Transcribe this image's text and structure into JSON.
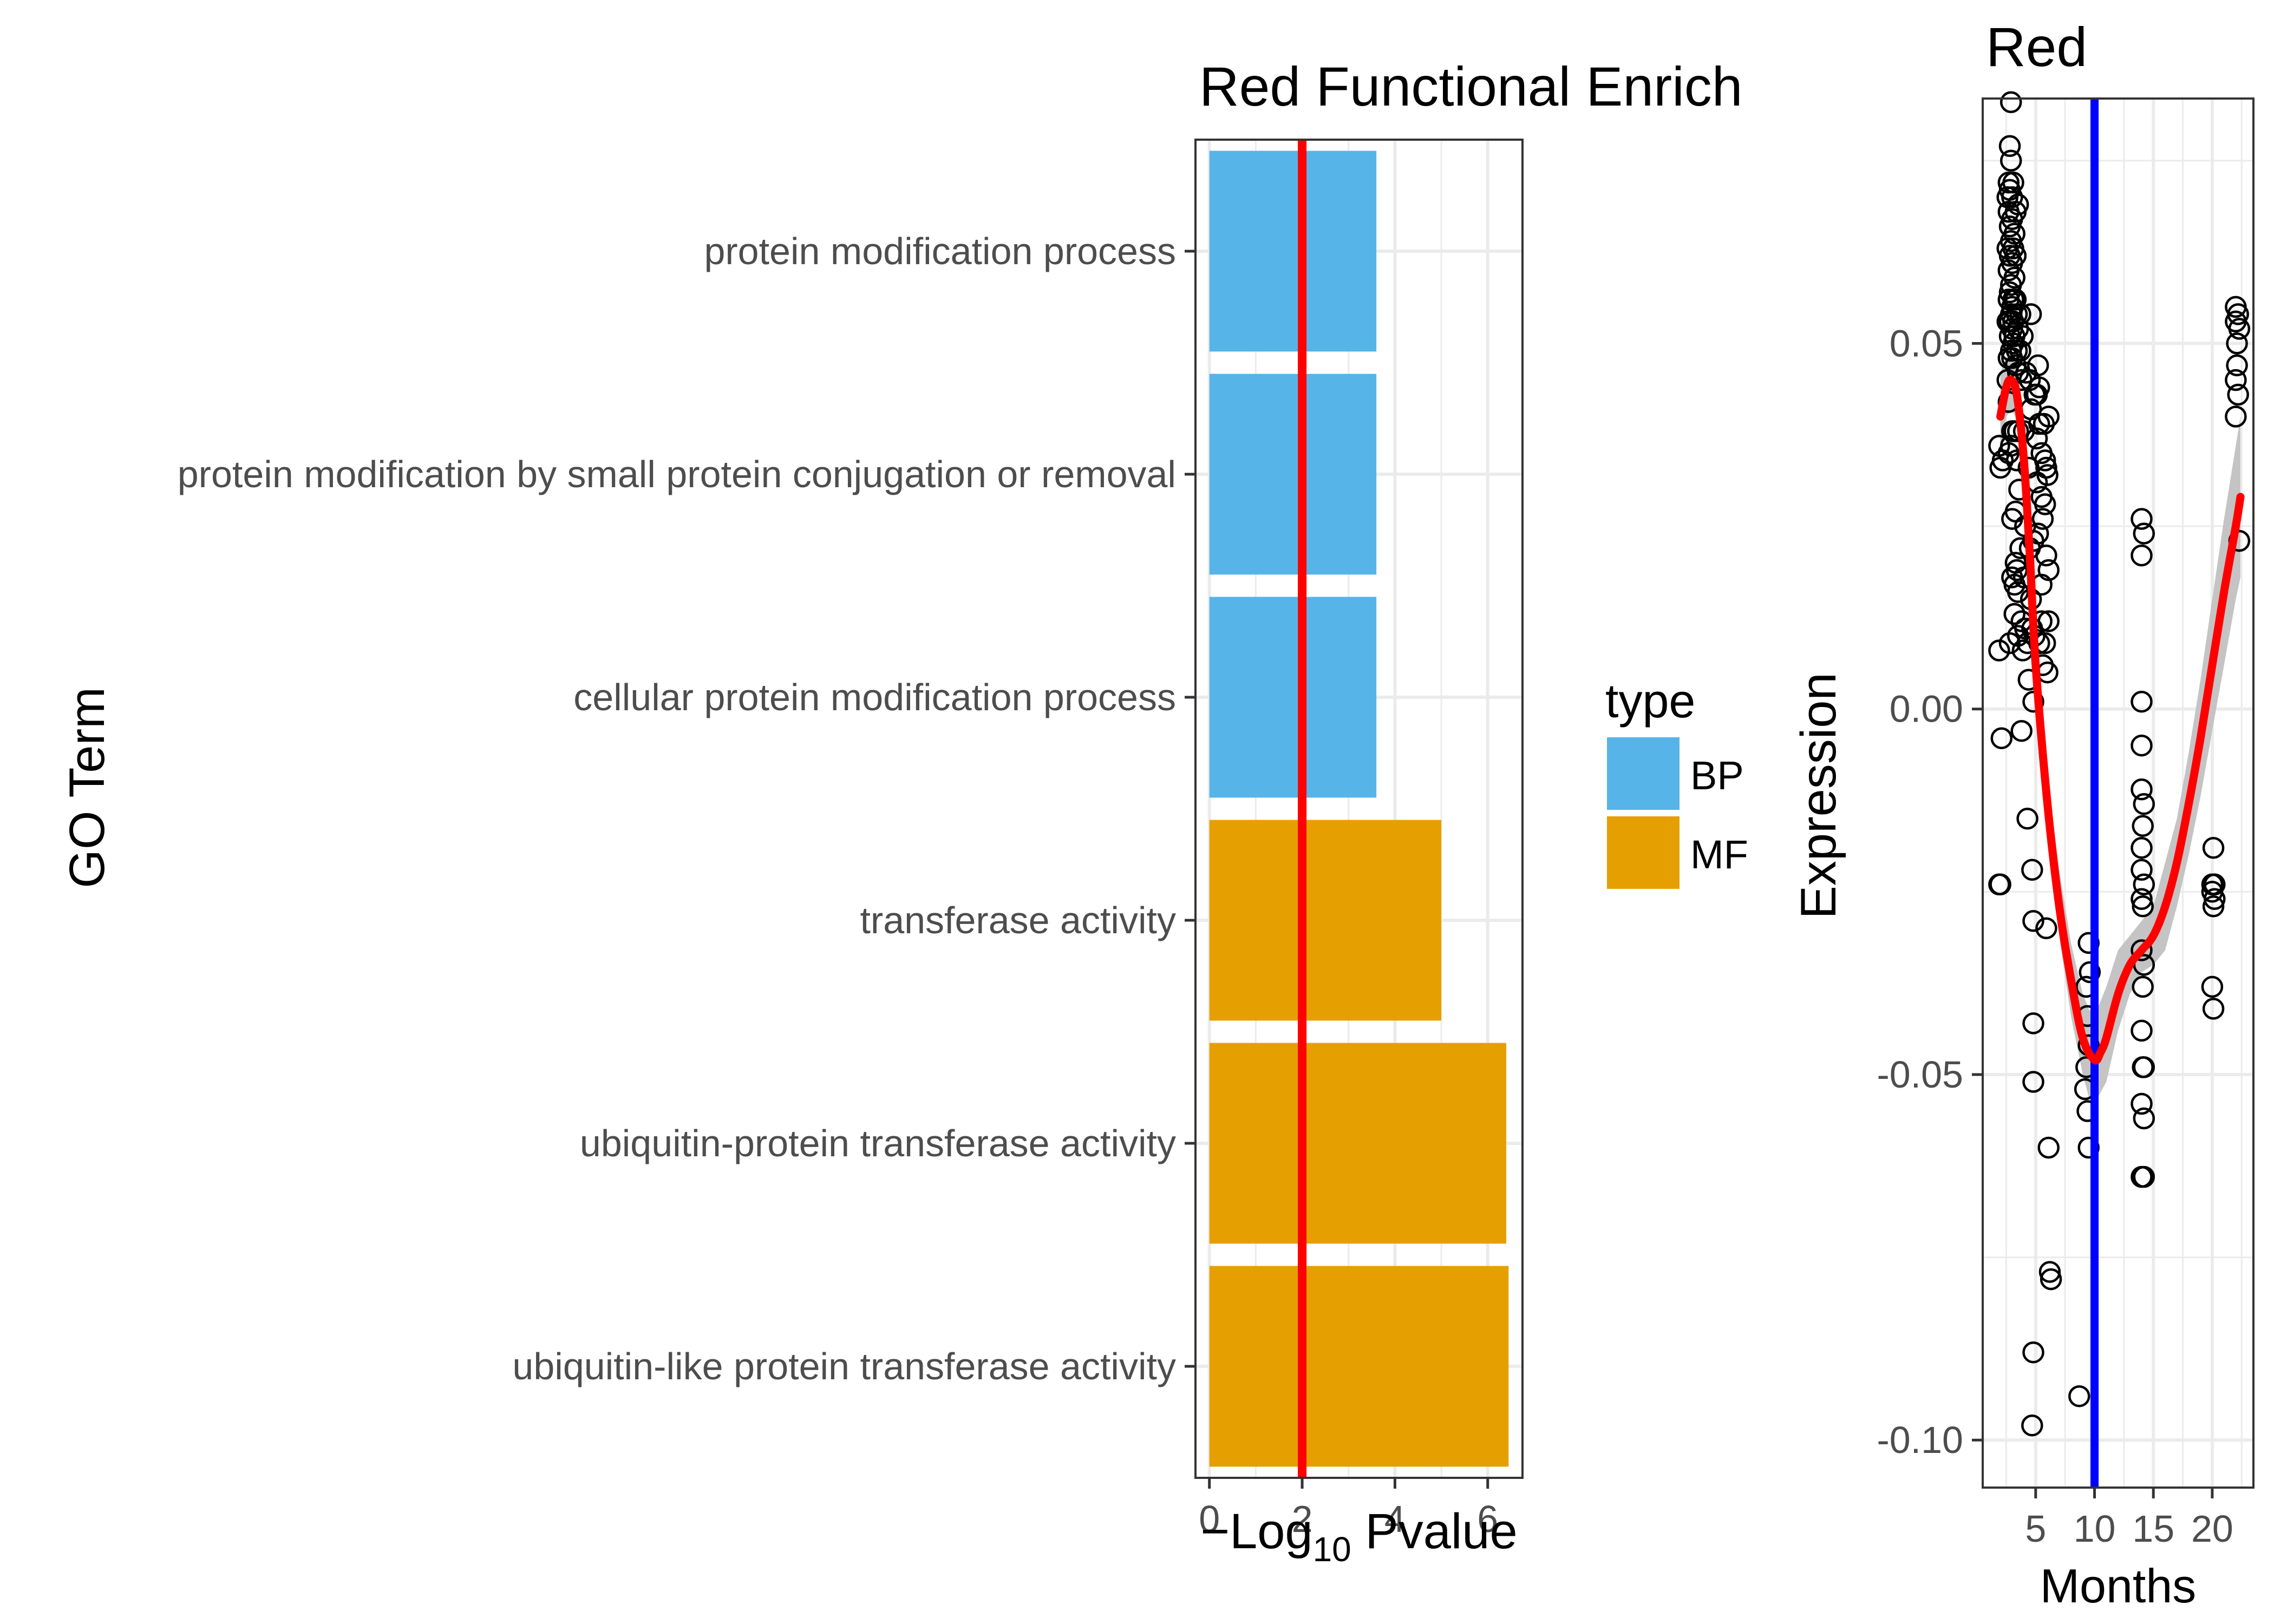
{
  "chart_data": [
    {
      "type": "bar",
      "orientation": "horizontal",
      "title": "Red Functional Enrich",
      "xlabel_parts": [
        "−",
        "Log",
        "10",
        " Pvalue"
      ],
      "ylabel": "GO Term",
      "categories": [
        "protein modification process",
        "protein modification by small protein conjugation or removal",
        "cellular protein modification process",
        "transferase activity",
        "ubiquitin-protein transferase activity",
        "ubiquitin-like protein transferase activity"
      ],
      "values": [
        3.6,
        3.6,
        3.6,
        5.0,
        6.4,
        6.45
      ],
      "types": [
        "BP",
        "BP",
        "BP",
        "MF",
        "MF",
        "MF"
      ],
      "xlim": [
        -0.3,
        6.75
      ],
      "xticks": [
        "0",
        "2",
        "4",
        "6"
      ],
      "threshold": 2,
      "threshold_color": "#ff0000",
      "grid": true,
      "legend": {
        "title": "type",
        "position": "right",
        "entries": [
          {
            "label": "BP",
            "color": "#56b4e9"
          },
          {
            "label": "MF",
            "color": "#e69f00"
          }
        ]
      }
    },
    {
      "type": "scatter",
      "title": "Red",
      "xlabel": "Months",
      "ylabel": "Expression",
      "xlim": [
        0.5,
        23.5
      ],
      "ylim": [
        -0.1065,
        0.0835
      ],
      "xticks": [
        "5",
        "10",
        "15",
        "20"
      ],
      "yticks": [
        "0.05",
        "0.00",
        "-0.05",
        "-0.10"
      ],
      "vline": 10,
      "vline_color": "#0000ff",
      "smooth_color": "#ff0000",
      "grid": true,
      "points": [
        [
          2.9,
          0.083
        ],
        [
          2.8,
          0.077
        ],
        [
          2.9,
          0.075
        ],
        [
          2.7,
          0.072
        ],
        [
          3.1,
          0.072
        ],
        [
          2.8,
          0.071
        ],
        [
          3.0,
          0.07
        ],
        [
          2.6,
          0.07
        ],
        [
          3.3,
          0.068
        ],
        [
          2.7,
          0.068
        ],
        [
          3.0,
          0.067
        ],
        [
          2.8,
          0.066
        ],
        [
          3.5,
          0.069
        ],
        [
          3.2,
          0.065
        ],
        [
          2.9,
          0.064
        ],
        [
          2.6,
          0.063
        ],
        [
          3.1,
          0.063
        ],
        [
          2.8,
          0.062
        ],
        [
          3.3,
          0.062
        ],
        [
          3.0,
          0.061
        ],
        [
          2.7,
          0.06
        ],
        [
          3.2,
          0.059
        ],
        [
          2.9,
          0.058
        ],
        [
          2.8,
          0.057
        ],
        [
          3.1,
          0.056
        ],
        [
          3.3,
          0.056
        ],
        [
          2.7,
          0.056
        ],
        [
          3.0,
          0.055
        ],
        [
          2.9,
          0.054
        ],
        [
          3.4,
          0.054
        ],
        [
          3.7,
          0.054
        ],
        [
          4.6,
          0.054
        ],
        [
          2.8,
          0.053
        ],
        [
          3.1,
          0.053
        ],
        [
          2.6,
          0.053
        ],
        [
          3.5,
          0.052
        ],
        [
          3.0,
          0.052
        ],
        [
          3.2,
          0.051
        ],
        [
          3.9,
          0.051
        ],
        [
          2.8,
          0.051
        ],
        [
          3.1,
          0.05
        ],
        [
          3.4,
          0.049
        ],
        [
          2.9,
          0.049
        ],
        [
          3.7,
          0.049
        ],
        [
          2.7,
          0.048
        ],
        [
          3.0,
          0.048
        ],
        [
          3.3,
          0.047
        ],
        [
          3.5,
          0.046
        ],
        [
          2.6,
          0.045
        ],
        [
          5.2,
          0.047
        ],
        [
          4.2,
          0.046
        ],
        [
          3.8,
          0.045
        ],
        [
          4.5,
          0.045
        ],
        [
          4.9,
          0.043
        ],
        [
          5.3,
          0.044
        ],
        [
          5.1,
          0.043
        ],
        [
          2.7,
          0.042
        ],
        [
          4.6,
          0.041
        ],
        [
          6.1,
          0.04
        ],
        [
          5.3,
          0.039
        ],
        [
          5.7,
          0.039
        ],
        [
          3.0,
          0.038
        ],
        [
          3.2,
          0.038
        ],
        [
          3.5,
          0.038
        ],
        [
          4.0,
          0.038
        ],
        [
          5.1,
          0.037
        ],
        [
          2.9,
          0.036
        ],
        [
          1.9,
          0.036
        ],
        [
          2.2,
          0.034
        ],
        [
          2.0,
          0.033
        ],
        [
          2.7,
          0.035
        ],
        [
          3.4,
          0.034
        ],
        [
          5.5,
          0.035
        ],
        [
          5.8,
          0.034
        ],
        [
          4.4,
          0.033
        ],
        [
          5.9,
          0.033
        ],
        [
          6.0,
          0.032
        ],
        [
          5.1,
          0.031
        ],
        [
          3.6,
          0.03
        ],
        [
          5.5,
          0.029
        ],
        [
          5.8,
          0.028
        ],
        [
          3.3,
          0.027
        ],
        [
          5.6,
          0.026
        ],
        [
          3.0,
          0.026
        ],
        [
          4.1,
          0.025
        ],
        [
          5.2,
          0.024
        ],
        [
          4.8,
          0.023
        ],
        [
          3.7,
          0.022
        ],
        [
          4.5,
          0.022
        ],
        [
          5.9,
          0.021
        ],
        [
          3.3,
          0.02
        ],
        [
          3.4,
          0.019
        ],
        [
          3.0,
          0.018
        ],
        [
          4.0,
          0.018
        ],
        [
          5.5,
          0.017
        ],
        [
          6.1,
          0.019
        ],
        [
          3.2,
          0.017
        ],
        [
          3.5,
          0.016
        ],
        [
          4.6,
          0.015
        ],
        [
          3.2,
          0.013
        ],
        [
          3.8,
          0.012
        ],
        [
          4.1,
          0.011
        ],
        [
          5.5,
          0.012
        ],
        [
          6.1,
          0.012
        ],
        [
          4.7,
          0.011
        ],
        [
          3.5,
          0.01
        ],
        [
          4.9,
          0.01
        ],
        [
          5.3,
          0.009
        ],
        [
          2.8,
          0.009
        ],
        [
          4.3,
          0.009
        ],
        [
          5.8,
          0.009
        ],
        [
          3.9,
          0.008
        ],
        [
          1.9,
          0.008
        ],
        [
          5.6,
          0.006
        ],
        [
          6.0,
          0.005
        ],
        [
          4.4,
          0.004
        ],
        [
          4.8,
          0.001
        ],
        [
          3.8,
          -0.003
        ],
        [
          2.1,
          -0.004
        ],
        [
          4.3,
          -0.015
        ],
        [
          4.7,
          -0.022
        ],
        [
          1.9,
          -0.024
        ],
        [
          2.0,
          -0.024
        ],
        [
          4.8,
          -0.029
        ],
        [
          5.9,
          -0.03
        ],
        [
          4.8,
          -0.043
        ],
        [
          4.8,
          -0.051
        ],
        [
          6.1,
          -0.06
        ],
        [
          6.2,
          -0.077
        ],
        [
          6.3,
          -0.078
        ],
        [
          4.8,
          -0.088
        ],
        [
          4.7,
          -0.098
        ],
        [
          8.7,
          -0.094
        ],
        [
          9.5,
          -0.032
        ],
        [
          9.6,
          -0.036
        ],
        [
          9.3,
          -0.038
        ],
        [
          9.4,
          -0.042
        ],
        [
          9.5,
          -0.046
        ],
        [
          9.3,
          -0.049
        ],
        [
          9.2,
          -0.052
        ],
        [
          9.4,
          -0.055
        ],
        [
          9.5,
          -0.06
        ],
        [
          14.0,
          0.026
        ],
        [
          14.2,
          0.024
        ],
        [
          14.0,
          0.021
        ],
        [
          14.0,
          0.001
        ],
        [
          14.0,
          -0.005
        ],
        [
          14.0,
          -0.011
        ],
        [
          14.2,
          -0.013
        ],
        [
          14.1,
          -0.016
        ],
        [
          14.0,
          -0.019
        ],
        [
          14.0,
          -0.022
        ],
        [
          14.2,
          -0.024
        ],
        [
          14.0,
          -0.026
        ],
        [
          14.1,
          -0.027
        ],
        [
          14.0,
          -0.033
        ],
        [
          14.2,
          -0.035
        ],
        [
          14.1,
          -0.038
        ],
        [
          14.0,
          -0.044
        ],
        [
          14.2,
          -0.049
        ],
        [
          14.1,
          -0.049
        ],
        [
          14.0,
          -0.054
        ],
        [
          14.2,
          -0.056
        ],
        [
          14.0,
          -0.064
        ],
        [
          14.2,
          -0.064
        ],
        [
          22.0,
          0.055
        ],
        [
          22.2,
          0.054
        ],
        [
          22.0,
          0.053
        ],
        [
          22.3,
          0.052
        ],
        [
          22.1,
          0.05
        ],
        [
          22.1,
          0.047
        ],
        [
          22.0,
          0.045
        ],
        [
          22.2,
          0.043
        ],
        [
          22.0,
          0.04
        ],
        [
          22.3,
          0.023
        ],
        [
          20.1,
          -0.019
        ],
        [
          20.0,
          -0.024
        ],
        [
          20.2,
          -0.024
        ],
        [
          20.0,
          -0.025
        ],
        [
          20.2,
          -0.026
        ],
        [
          20.1,
          -0.027
        ],
        [
          20.0,
          -0.038
        ],
        [
          20.1,
          -0.041
        ]
      ],
      "smooth": [
        [
          2.0,
          0.04
        ],
        [
          2.5,
          0.044
        ],
        [
          2.9,
          0.045
        ],
        [
          3.4,
          0.043
        ],
        [
          4.0,
          0.034
        ],
        [
          4.5,
          0.021
        ],
        [
          5.0,
          0.006
        ],
        [
          6.0,
          -0.013
        ],
        [
          7.0,
          -0.027
        ],
        [
          8.0,
          -0.037
        ],
        [
          9.0,
          -0.045
        ],
        [
          10.0,
          -0.048
        ],
        [
          10.5,
          -0.047
        ],
        [
          11.0,
          -0.045
        ],
        [
          12.0,
          -0.039
        ],
        [
          13.0,
          -0.035
        ],
        [
          14.0,
          -0.033
        ],
        [
          15.0,
          -0.031
        ],
        [
          16.0,
          -0.027
        ],
        [
          17.0,
          -0.021
        ],
        [
          18.0,
          -0.013
        ],
        [
          19.0,
          -0.004
        ],
        [
          20.0,
          0.006
        ],
        [
          21.0,
          0.016
        ],
        [
          22.0,
          0.025
        ],
        [
          22.4,
          0.029
        ]
      ],
      "band": [
        [
          2.0,
          0.035,
          0.046
        ],
        [
          2.5,
          0.04,
          0.048
        ],
        [
          3.0,
          0.041,
          0.049
        ],
        [
          3.5,
          0.039,
          0.047
        ],
        [
          4.0,
          0.031,
          0.038
        ],
        [
          4.5,
          0.018,
          0.025
        ],
        [
          5.0,
          0.002,
          0.01
        ],
        [
          6.0,
          -0.017,
          -0.009
        ],
        [
          7.0,
          -0.031,
          -0.022
        ],
        [
          8.0,
          -0.042,
          -0.032
        ],
        [
          9.0,
          -0.05,
          -0.039
        ],
        [
          9.5,
          -0.053,
          -0.041
        ],
        [
          10.0,
          -0.054,
          -0.042
        ],
        [
          11.0,
          -0.051,
          -0.038
        ],
        [
          12.0,
          -0.044,
          -0.033
        ],
        [
          13.0,
          -0.039,
          -0.031
        ],
        [
          14.0,
          -0.036,
          -0.029
        ],
        [
          15.0,
          -0.035,
          -0.027
        ],
        [
          16.0,
          -0.033,
          -0.021
        ],
        [
          17.0,
          -0.027,
          -0.015
        ],
        [
          18.0,
          -0.02,
          -0.006
        ],
        [
          19.0,
          -0.012,
          0.004
        ],
        [
          20.0,
          -0.003,
          0.015
        ],
        [
          21.0,
          0.006,
          0.026
        ],
        [
          22.0,
          0.015,
          0.036
        ],
        [
          22.4,
          0.018,
          0.04
        ]
      ]
    }
  ]
}
